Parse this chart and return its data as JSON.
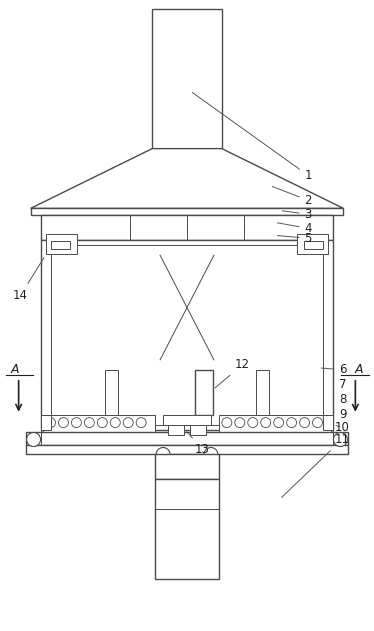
{
  "bg_color": "#ffffff",
  "line_color": "#4a4a4a",
  "label_color": "#222222",
  "figsize": [
    3.74,
    6.31
  ],
  "dpi": 100
}
